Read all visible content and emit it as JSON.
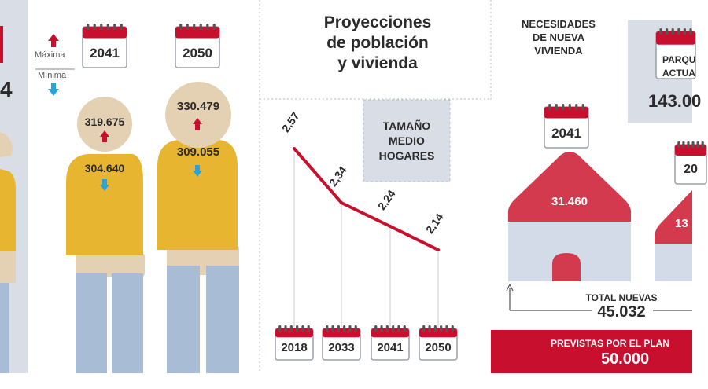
{
  "colors": {
    "panel": "#d9dee6",
    "shirt": "#e8b530",
    "skin": "#e4d1b4",
    "pants": "#a9bcd6",
    "red": "#c8102e",
    "roof": "#d33a4d",
    "wall": "#d3dbe8",
    "dark": "#2b2b2b"
  },
  "partial_left": {
    "digit": "4"
  },
  "legend": {
    "max_label": "Máxima",
    "min_label": "Mínima",
    "max_icon": "arrow-up-icon",
    "min_icon": "arrow-down-icon"
  },
  "population": {
    "figures": [
      {
        "year": "2041",
        "max": "319.675",
        "min": "304.640"
      },
      {
        "year": "2050",
        "max": "330.479",
        "min": "309.055"
      }
    ]
  },
  "title": {
    "line1": "Proyecciones",
    "line2": "de población",
    "line3": "y vivienda"
  },
  "household": {
    "label_line1": "TAMAÑO",
    "label_line2": "MEDIO",
    "label_line3": "HOGARES"
  },
  "chart_data": {
    "type": "line",
    "categories": [
      "2018",
      "2033",
      "2041",
      "2050"
    ],
    "values": [
      2.57,
      2.34,
      2.24,
      2.14
    ],
    "value_labels": [
      "2,57",
      "2,34",
      "2,24",
      "2,14"
    ],
    "series": [
      {
        "values": [
          2.57,
          2.34,
          2.24,
          2.14
        ]
      }
    ],
    "title": "TAMAÑO MEDIO HOGARES",
    "xlabel": "",
    "ylabel": "",
    "ylim": [
      2.0,
      2.7
    ]
  },
  "housing": {
    "heading_line1": "NECESIDADES",
    "heading_line2": "DE NUEVA",
    "heading_line3": "VIVIENDA",
    "parque_line1": "PARQU",
    "parque_line2": "ACTUA",
    "parque_value": "143.00",
    "house_2041": {
      "year": "2041",
      "value": "31.460"
    },
    "house_2050": {
      "year": "20",
      "value": "13"
    },
    "total_label": "TOTAL NUEVAS",
    "total_value": "45.032",
    "plan_label": "PREVISTAS POR EL PLAN",
    "plan_value": "50.000"
  }
}
